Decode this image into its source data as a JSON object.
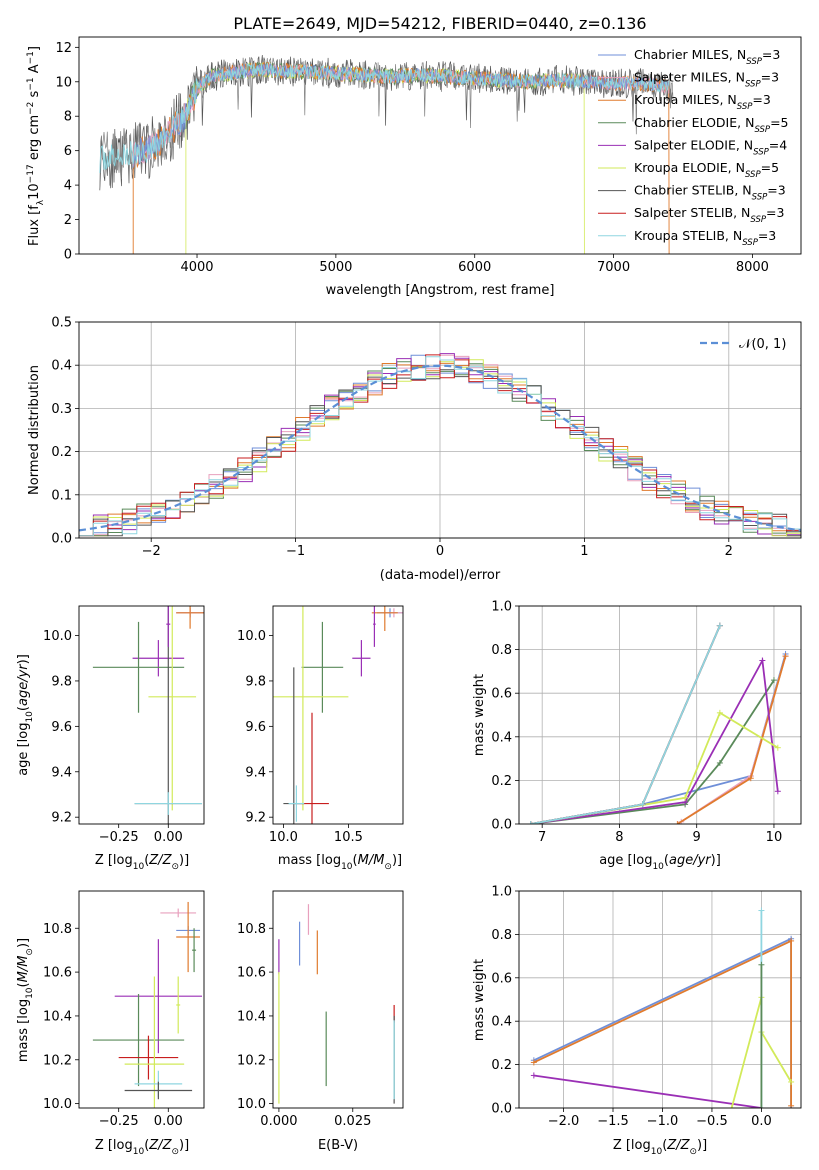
{
  "title": "PLATE=2649, MJD=54212, FIBERID=0440, z=0.136",
  "colors": {
    "chabrier_miles": "#6f8fd8",
    "salpeter_miles": "#e8a0bd",
    "kroupa_miles": "#e07b2e",
    "chabrier_elodie": "#5a8a5a",
    "salpeter_elodie": "#9a2fb5",
    "kroupa_elodie": "#d2ea5a",
    "chabrier_stelib": "#555555",
    "salpeter_stelib": "#c81e1e",
    "kroupa_stelib": "#8fd6e0",
    "gaussian": "#5b8fd6",
    "spectrum_gray": "#808080"
  },
  "chart_data": [
    {
      "type": "line",
      "xlabel": "wavelength [Angstrom, rest frame]",
      "ylabel": "Flux [f_λ 10^-17 erg cm^-2 s^-1 A^-1]",
      "xlim": [
        3150,
        8350
      ],
      "ylim": [
        0,
        12.6
      ],
      "xticks": [
        "4000",
        "5000",
        "6000",
        "7000",
        "8000"
      ],
      "yticks": [
        "0",
        "2",
        "4",
        "6",
        "8",
        "10",
        "12"
      ],
      "spectrum_envelope": {
        "x": [
          3300,
          3500,
          3700,
          3900,
          4000,
          4100,
          4300,
          4500,
          4700,
          5000,
          5200,
          5400,
          5600,
          5800,
          6000,
          6200,
          6400,
          6600,
          6800,
          7000,
          7200,
          7400
        ],
        "y": [
          5.5,
          5.7,
          6.3,
          7.8,
          9.6,
          10.3,
          10.6,
          10.7,
          10.6,
          10.5,
          10.4,
          10.3,
          10.4,
          10.3,
          10.2,
          10.1,
          10.0,
          10.1,
          10.0,
          9.9,
          9.9,
          9.7
        ]
      },
      "legend": [
        {
          "label": "Chabrier MILES, N",
          "sub": "SSP",
          "eq": "=3",
          "color_key": "chabrier_miles"
        },
        {
          "label": "Salpeter MILES, N",
          "sub": "SSP",
          "eq": "=3",
          "color_key": "salpeter_miles"
        },
        {
          "label": "Kroupa MILES, N",
          "sub": "SSP",
          "eq": "=3",
          "color_key": "kroupa_miles"
        },
        {
          "label": "Chabrier ELODIE, N",
          "sub": "SSP",
          "eq": "=5",
          "color_key": "chabrier_elodie"
        },
        {
          "label": "Salpeter ELODIE, N",
          "sub": "SSP",
          "eq": "=4",
          "color_key": "salpeter_elodie"
        },
        {
          "label": "Kroupa ELODIE, N",
          "sub": "SSP",
          "eq": "=5",
          "color_key": "kroupa_elodie"
        },
        {
          "label": "Chabrier STELIB, N",
          "sub": "SSP",
          "eq": "=3",
          "color_key": "chabrier_stelib"
        },
        {
          "label": "Salpeter STELIB, N",
          "sub": "SSP",
          "eq": "=3",
          "color_key": "salpeter_stelib"
        },
        {
          "label": "Kroupa STELIB, N",
          "sub": "SSP",
          "eq": "=3",
          "color_key": "kroupa_stelib"
        }
      ],
      "legend_placement": "right"
    },
    {
      "type": "histogram",
      "xlabel": "(data-model)/error",
      "ylabel": "Normed distribution",
      "xlim": [
        -2.5,
        2.5
      ],
      "ylim": [
        0,
        0.5
      ],
      "xticks": [
        "−2",
        "−1",
        "0",
        "1",
        "2"
      ],
      "yticks": [
        "0.0",
        "0.1",
        "0.2",
        "0.3",
        "0.4",
        "0.5"
      ],
      "grid": true,
      "legend": "𝒩(0, 1)",
      "legend_placement": "top-right"
    },
    {
      "type": "scatter",
      "xlabel": "Z [log10(Z/Z⊙)]",
      "ylabel": "age  [log10(age/yr)]",
      "xlim": [
        -0.45,
        0.18
      ],
      "ylim": [
        9.17,
        10.13
      ],
      "xticks": [
        "−0.25",
        "0.00"
      ],
      "yticks": [
        "9.2",
        "9.4",
        "9.6",
        "9.8",
        "10.0"
      ]
    },
    {
      "type": "scatter",
      "xlabel": "mass [log10(M/M⊙)]",
      "ylabel": "",
      "xlim": [
        9.92,
        10.92
      ],
      "ylim": [
        9.17,
        10.13
      ],
      "xticks": [
        "10.0",
        "10.5"
      ],
      "yticks": [
        "9.2",
        "9.4",
        "9.6",
        "9.8",
        "10.0"
      ]
    },
    {
      "type": "line",
      "xlabel": "age  [log10(age/yr)]",
      "ylabel": "mass weight",
      "xlim": [
        6.7,
        10.35
      ],
      "ylim": [
        0,
        1.0
      ],
      "xticks": [
        "7",
        "8",
        "9",
        "10"
      ],
      "yticks": [
        "0.0",
        "0.2",
        "0.4",
        "0.6",
        "0.8",
        "1.0"
      ],
      "grid": true,
      "series": [
        {
          "color_key": "chabrier_miles",
          "x": [
            6.85,
            8.3,
            9.7,
            10.15
          ],
          "y": [
            0.0,
            0.09,
            0.22,
            0.78
          ]
        },
        {
          "color_key": "salpeter_miles",
          "x": [
            8.8,
            9.7,
            10.15
          ],
          "y": [
            0.01,
            0.22,
            0.77
          ]
        },
        {
          "color_key": "kroupa_miles",
          "x": [
            8.75,
            9.7,
            10.15
          ],
          "y": [
            0.0,
            0.21,
            0.77
          ]
        },
        {
          "color_key": "chabrier_elodie",
          "x": [
            6.85,
            8.85,
            9.3,
            10.0
          ],
          "y": [
            0.0,
            0.09,
            0.28,
            0.66
          ]
        },
        {
          "color_key": "salpeter_elodie",
          "x": [
            6.85,
            8.85,
            9.85,
            10.05
          ],
          "y": [
            0.0,
            0.1,
            0.75,
            0.15
          ]
        },
        {
          "color_key": "kroupa_elodie",
          "x": [
            6.85,
            8.85,
            9.3,
            10.05
          ],
          "y": [
            0.0,
            0.12,
            0.51,
            0.35
          ]
        },
        {
          "color_key": "chabrier_stelib",
          "x": [
            6.85,
            8.3,
            9.3
          ],
          "y": [
            0.0,
            0.09,
            0.91
          ]
        },
        {
          "color_key": "salpeter_stelib",
          "x": [
            6.85,
            8.3,
            9.3
          ],
          "y": [
            0.0,
            0.09,
            0.91
          ]
        },
        {
          "color_key": "kroupa_stelib",
          "x": [
            6.85,
            8.3,
            9.3
          ],
          "y": [
            0.0,
            0.09,
            0.91
          ]
        }
      ]
    },
    {
      "type": "scatter",
      "xlabel": "Z [log10(Z/Z⊙)]",
      "ylabel": "mass [log10(M/M⊙)]",
      "xlim": [
        -0.45,
        0.18
      ],
      "ylim": [
        9.98,
        10.97
      ],
      "xticks": [
        "−0.25",
        "0.00"
      ],
      "yticks": [
        "10.0",
        "10.2",
        "10.4",
        "10.6",
        "10.8"
      ]
    },
    {
      "type": "scatter",
      "xlabel": "E(B-V)",
      "ylabel": "",
      "xlim": [
        -0.002,
        0.042
      ],
      "ylim": [
        9.98,
        10.97
      ],
      "xticks": [
        "0.000",
        "0.025"
      ],
      "yticks": [
        "10.0",
        "10.2",
        "10.4",
        "10.6",
        "10.8"
      ]
    },
    {
      "type": "line",
      "xlabel": "Z [log10(Z/Z⊙)]",
      "ylabel": "mass weight",
      "xlim": [
        -2.45,
        0.4
      ],
      "ylim": [
        0,
        1.0
      ],
      "xticks": [
        "−2.0",
        "−1.5",
        "−1.0",
        "−0.5",
        "0.0"
      ],
      "yticks": [
        "0.0",
        "0.2",
        "0.4",
        "0.6",
        "0.8",
        "1.0"
      ],
      "grid": true,
      "series": [
        {
          "color_key": "salpeter_elodie",
          "x": [
            -2.3,
            0.0
          ],
          "y": [
            0.15,
            0.0
          ]
        },
        {
          "color_key": "chabrier_miles",
          "x": [
            -2.3,
            0.3,
            0.3
          ],
          "y": [
            0.22,
            0.78,
            0.0
          ]
        },
        {
          "color_key": "kroupa_miles",
          "x": [
            -2.3,
            0.3,
            0.3
          ],
          "y": [
            0.21,
            0.77,
            0.01
          ]
        },
        {
          "color_key": "kroupa_elodie",
          "x": [
            -0.3,
            0.0,
            0.0,
            0.3
          ],
          "y": [
            0.0,
            0.51,
            0.35,
            0.12
          ]
        },
        {
          "color_key": "kroupa_stelib",
          "x": [
            0.0,
            0.0
          ],
          "y": [
            0.0,
            0.91
          ]
        },
        {
          "color_key": "chabrier_elodie",
          "x": [
            0.0,
            0.0
          ],
          "y": [
            0.0,
            0.66
          ]
        }
      ]
    }
  ]
}
